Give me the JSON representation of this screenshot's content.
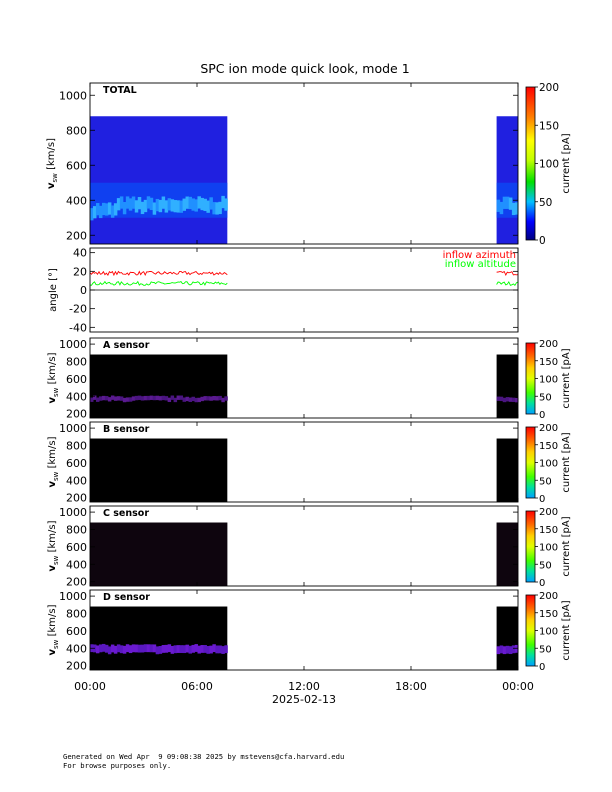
{
  "chart_data": {
    "type": "heatmap",
    "title": "SPC ion mode quick look, mode 1",
    "x_axis": {
      "ticks": [
        "00:00",
        "06:00",
        "12:00",
        "18:00",
        "00:00"
      ],
      "label": "2025-02-13",
      "range_hours": [
        0,
        24
      ]
    },
    "data_gap_hours": [
      7.7,
      22.8
    ],
    "panels": [
      {
        "id": "total",
        "label": "TOTAL",
        "kind": "spectrogram",
        "y_ticks": [
          200,
          400,
          600,
          800,
          1000
        ],
        "ylim": [
          150,
          1070
        ],
        "data_vmax": 880,
        "core_speed": 370,
        "colorbar": {
          "ticks": [
            0,
            50,
            100,
            150,
            200
          ],
          "label": "current [pA]",
          "range": [
            0,
            200
          ]
        }
      },
      {
        "id": "angle",
        "kind": "line",
        "y_ticks": [
          -40,
          -20,
          0,
          20,
          40
        ],
        "ylim": [
          -45,
          45
        ],
        "series": [
          {
            "name": "inflow azimuth",
            "color": "#ff0000",
            "level": 18
          },
          {
            "name": "inflow altitude",
            "color": "#00ff00",
            "level": 7
          }
        ]
      },
      {
        "id": "a",
        "label": "A sensor",
        "kind": "spectrogram",
        "y_ticks": [
          200,
          400,
          600,
          800,
          1000
        ],
        "ylim": [
          150,
          1070
        ],
        "data_vmax": 880,
        "core_speed": 370,
        "colorbar": {
          "ticks": [
            0,
            50,
            100,
            150,
            200
          ],
          "label": "current [pA]",
          "range": [
            0,
            200
          ]
        }
      },
      {
        "id": "b",
        "label": "B sensor",
        "kind": "spectrogram",
        "y_ticks": [
          200,
          400,
          600,
          800,
          1000
        ],
        "ylim": [
          150,
          1070
        ],
        "data_vmax": 880,
        "core_speed": 370,
        "colorbar": {
          "ticks": [
            0,
            50,
            100,
            150,
            200
          ],
          "label": "current [pA]",
          "range": [
            0,
            200
          ]
        }
      },
      {
        "id": "c",
        "label": "C sensor",
        "kind": "spectrogram",
        "y_ticks": [
          200,
          400,
          600,
          800,
          1000
        ],
        "ylim": [
          150,
          1070
        ],
        "data_vmax": 880,
        "core_speed": 370,
        "colorbar": {
          "ticks": [
            0,
            50,
            100,
            150,
            200
          ],
          "label": "current [pA]",
          "range": [
            0,
            200
          ]
        }
      },
      {
        "id": "d",
        "label": "D sensor",
        "kind": "spectrogram",
        "y_ticks": [
          200,
          400,
          600,
          800,
          1000
        ],
        "ylim": [
          150,
          1070
        ],
        "data_vmax": 880,
        "core_speed": 390,
        "colorbar": {
          "ticks": [
            0,
            50,
            100,
            150,
            200
          ],
          "label": "current [pA]",
          "range": [
            0,
            200
          ]
        }
      }
    ]
  },
  "footer": {
    "line1": "Generated on Wed Apr  9 09:08:38 2025 by mstevens@cfa.harvard.edu",
    "line2": "For browse purposes only."
  }
}
